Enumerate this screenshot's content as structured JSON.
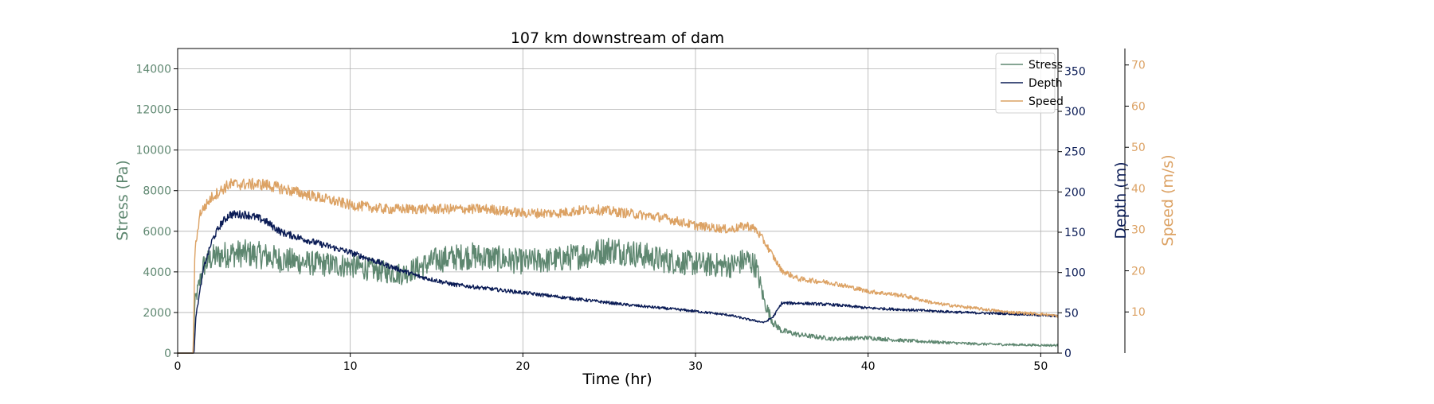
{
  "chart_data": {
    "type": "line",
    "title": "107 km downstream of dam",
    "xlabel": "Time (hr)",
    "xlim": [
      0,
      51
    ],
    "xticks": [
      0,
      10,
      20,
      30,
      40,
      50
    ],
    "grid": true,
    "legend_position": "top-right",
    "axes": {
      "stress": {
        "label": "Stress (Pa)",
        "side": "left",
        "ylim": [
          0,
          15000
        ],
        "ticks": [
          0,
          2000,
          4000,
          6000,
          8000,
          10000,
          12000,
          14000
        ],
        "color": "#5e8770"
      },
      "depth": {
        "label": "Depth (m)",
        "side": "right",
        "ylim": [
          0,
          378
        ],
        "ticks": [
          0,
          50,
          100,
          150,
          200,
          250,
          300,
          350
        ],
        "color": "#0a1b55"
      },
      "speed": {
        "label": "Speed (m/s)",
        "side": "right-outer",
        "ylim": [
          0,
          74
        ],
        "ticks": [
          10,
          20,
          30,
          40,
          50,
          60,
          70
        ],
        "color": "#dca264"
      }
    },
    "series": [
      {
        "name": "Stress",
        "axis": "stress",
        "color": "#5e8770",
        "x": [
          0,
          0.9,
          1.0,
          1.5,
          2,
          3,
          4,
          5,
          6,
          8,
          10,
          12,
          13,
          14.5,
          15,
          17,
          19,
          20,
          22,
          24,
          25,
          26,
          27,
          28,
          30,
          32,
          33,
          33.5,
          34,
          34.5,
          35,
          36,
          38,
          40,
          42,
          44,
          46,
          48,
          50,
          51
        ],
        "y": [
          0,
          0,
          2500,
          4300,
          4700,
          4900,
          4900,
          4800,
          4600,
          4400,
          4300,
          4000,
          3900,
          4400,
          4600,
          4800,
          4600,
          4500,
          4600,
          4900,
          5100,
          5000,
          4800,
          4600,
          4400,
          4300,
          4600,
          4300,
          2500,
          1500,
          1100,
          900,
          700,
          750,
          620,
          540,
          460,
          420,
          390,
          380
        ],
        "noise": 0.14
      },
      {
        "name": "Depth",
        "axis": "depth",
        "color": "#0a1b55",
        "x": [
          0,
          0.95,
          1.05,
          1.5,
          2,
          2.5,
          3,
          4,
          5,
          6,
          8,
          10,
          12,
          14,
          16,
          18,
          20,
          22,
          24,
          26,
          28,
          30,
          32,
          33,
          34,
          34.5,
          35,
          36,
          38,
          40,
          42,
          44,
          46,
          48,
          50,
          51
        ],
        "y": [
          0,
          0,
          45,
          105,
          140,
          160,
          172,
          172,
          165,
          150,
          137,
          125,
          110,
          95,
          85,
          80,
          75,
          70,
          65,
          60,
          56,
          52,
          47,
          42,
          38,
          45,
          62,
          62,
          60,
          56,
          54,
          52,
          50,
          49,
          47,
          46
        ],
        "noise": 0.03
      },
      {
        "name": "Speed",
        "axis": "speed",
        "color": "#dca264",
        "x": [
          0,
          0.9,
          1.0,
          1.3,
          2,
          3,
          4,
          5,
          6,
          7,
          8,
          10,
          12,
          14,
          16,
          18,
          20,
          22,
          24,
          26,
          28,
          30,
          32,
          33,
          33.5,
          34,
          35,
          36,
          38,
          40,
          42,
          44,
          46,
          48,
          50,
          51
        ],
        "y": [
          0,
          0,
          25,
          34,
          38,
          41,
          41,
          41,
          40,
          39,
          38,
          36,
          35,
          35,
          35,
          35,
          34,
          34,
          35,
          34,
          33,
          31,
          30,
          31,
          30,
          27,
          20,
          18,
          17,
          15,
          14,
          12,
          11,
          10,
          9.5,
          9
        ],
        "noise": 0.035
      }
    ]
  }
}
